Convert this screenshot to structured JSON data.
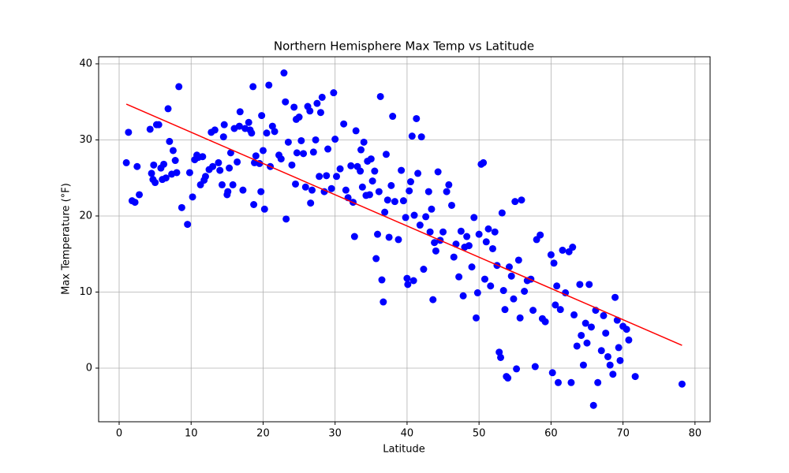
{
  "chart_data": {
    "type": "scatter",
    "title": "Northern Hemisphere Max Temp vs Latitude",
    "x_label": "Latitude",
    "y_label": "Max Temperature (°F)",
    "xlim": [
      -2.85,
      82.1
    ],
    "ylim": [
      -7.05,
      40.93
    ],
    "xticks": [
      0,
      10,
      20,
      30,
      40,
      50,
      60,
      70,
      80
    ],
    "yticks": [
      0,
      10,
      20,
      30,
      40
    ],
    "grid": true,
    "series": [
      {
        "color": "#0000ff",
        "x": [
          1,
          1.3,
          1.8,
          2.2,
          2.5,
          2.8,
          4.3,
          4.5,
          4.7,
          4.8,
          5,
          5.2,
          5.5,
          5.8,
          6,
          6.2,
          6.5,
          6.8,
          7,
          7.3,
          7.5,
          7.8,
          8,
          8.3,
          8.7,
          9.5,
          9.8,
          10.2,
          10.5,
          10.8,
          11,
          11.3,
          11.6,
          11.8,
          12,
          12.5,
          12.8,
          13,
          13.3,
          13.8,
          14,
          14.3,
          14.5,
          14.6,
          15,
          15.1,
          15.3,
          15.5,
          15.8,
          16,
          16.4,
          16.7,
          16.8,
          17.2,
          17.5,
          18,
          18.2,
          18.4,
          18.6,
          18.7,
          18.8,
          19,
          19.5,
          19.7,
          19.8,
          20,
          20.2,
          20.5,
          20.8,
          21,
          21.3,
          21.6,
          22.2,
          22.5,
          22.9,
          23.1,
          23.2,
          23.5,
          24,
          24.3,
          24.5,
          24.6,
          24.7,
          25,
          25.3,
          25.6,
          25.9,
          26.2,
          26.5,
          26.6,
          26.8,
          27,
          27.3,
          27.5,
          27.8,
          28,
          28.2,
          28.5,
          28.8,
          29,
          29.5,
          29.8,
          30,
          30.2,
          30.7,
          31.2,
          31.5,
          31.8,
          32.2,
          32.5,
          32.7,
          32.9,
          33.1,
          33.5,
          33.6,
          33.8,
          34,
          34.3,
          34.5,
          34.8,
          35,
          35.2,
          35.5,
          35.7,
          35.9,
          36.1,
          36.3,
          36.5,
          36.7,
          36.9,
          37.1,
          37.3,
          37.5,
          37.8,
          38,
          38.3,
          38.8,
          39.2,
          39.5,
          39.8,
          40,
          40.1,
          40.3,
          40.5,
          40.7,
          40.9,
          41,
          41.3,
          41.5,
          41.8,
          42,
          42.3,
          42.6,
          43,
          43.2,
          43.4,
          43.6,
          43.8,
          44,
          44.3,
          44.6,
          45,
          45.5,
          45.8,
          46.2,
          46.5,
          46.8,
          47.2,
          47.5,
          47.8,
          48,
          48.3,
          48.6,
          49,
          49.3,
          49.6,
          49.8,
          50,
          50.3,
          50.6,
          50.8,
          51,
          51.3,
          51.6,
          51.9,
          52.2,
          52.5,
          52.8,
          53,
          53.2,
          53.4,
          53.6,
          53.8,
          54,
          54.2,
          54.5,
          54.8,
          55,
          55.2,
          55.5,
          55.7,
          55.9,
          56.3,
          56.7,
          57.2,
          57.5,
          57.8,
          58,
          58.5,
          58.8,
          59.2,
          60,
          60.2,
          60.4,
          60.6,
          60.8,
          61,
          61.3,
          61.6,
          62,
          62.5,
          62.8,
          63,
          63.2,
          63.6,
          64,
          64.2,
          64.5,
          64.8,
          65,
          65.3,
          65.6,
          65.9,
          66.2,
          66.5,
          67,
          67.3,
          67.6,
          67.9,
          68.2,
          68.6,
          68.9,
          69.2,
          69.4,
          69.6,
          70,
          70.5,
          70.8,
          71.7,
          78.2
        ],
        "values": [
          27,
          31,
          22,
          21.8,
          26.5,
          22.8,
          31.4,
          25.6,
          24.8,
          26.7,
          24.4,
          32,
          32,
          26.3,
          24.8,
          26.8,
          25,
          34.1,
          29.8,
          25.5,
          28.6,
          27.3,
          25.7,
          37,
          21.1,
          18.9,
          25.7,
          22.5,
          27.4,
          28,
          27.7,
          24.1,
          27.8,
          24.7,
          25.2,
          26.1,
          31,
          26.5,
          31.3,
          27,
          26,
          24.1,
          30.4,
          32,
          22.8,
          23.2,
          26.3,
          28.3,
          24.1,
          31.5,
          27.1,
          31.8,
          33.7,
          23.4,
          31.5,
          32.3,
          31.3,
          30.9,
          37,
          21.5,
          27,
          27.9,
          26.9,
          23.2,
          33.2,
          28.6,
          20.9,
          30.9,
          37.2,
          26.5,
          31.8,
          31.1,
          28,
          27.5,
          38.8,
          35,
          19.6,
          29.7,
          26.7,
          34.3,
          24.2,
          32.7,
          28.3,
          33,
          29.9,
          28.2,
          23.8,
          34.4,
          33.8,
          21.7,
          23.4,
          28.4,
          30,
          34.8,
          25.2,
          33.6,
          35.6,
          23.2,
          25.3,
          28.8,
          23.6,
          36.2,
          30.1,
          25.2,
          26.2,
          32.1,
          23.4,
          22.4,
          26.6,
          21.8,
          17.3,
          31.2,
          26.5,
          25.9,
          28.7,
          23.8,
          29.7,
          22.7,
          27.2,
          22.8,
          27.5,
          24.6,
          25.9,
          14.4,
          17.6,
          23.2,
          35.7,
          11.6,
          8.7,
          20.5,
          28.1,
          22.1,
          17.2,
          24,
          33.1,
          21.9,
          16.9,
          26,
          22,
          19.8,
          11.8,
          11,
          23.3,
          24.5,
          30.5,
          11.5,
          20.1,
          32.8,
          25.6,
          18.8,
          30.4,
          13,
          19.9,
          23.2,
          17.9,
          20.9,
          9,
          16.5,
          15.4,
          25.8,
          16.8,
          17.9,
          23.2,
          24.1,
          21.4,
          14.6,
          16.3,
          12,
          18,
          9.5,
          15.9,
          17.3,
          16.1,
          13.3,
          19.8,
          6.6,
          9.9,
          17.6,
          26.8,
          27,
          11.7,
          16.6,
          18.3,
          10.8,
          15.7,
          17.9,
          13.5,
          2.1,
          1.4,
          20.4,
          10.2,
          7.7,
          -1.1,
          -1.3,
          13.3,
          12.1,
          9.1,
          21.9,
          -0.1,
          14.2,
          6.6,
          22.1,
          10.1,
          11.5,
          11.7,
          7.6,
          0.2,
          16.9,
          17.5,
          6.5,
          6.1,
          14.9,
          -0.6,
          13.8,
          8.3,
          10.8,
          -1.9,
          7.7,
          15.5,
          9.9,
          15.3,
          -1.9,
          15.9,
          7,
          2.9,
          11,
          4.3,
          0.4,
          5.9,
          3.3,
          11,
          5.4,
          -4.9,
          7.6,
          -1.9,
          2.3,
          6.9,
          4.6,
          1.5,
          0.4,
          -0.8,
          9.3,
          6.3,
          2.7,
          1,
          5.5,
          5.1,
          3.7,
          -1.1,
          -2.1
        ]
      }
    ],
    "trendline": {
      "color": "#ff0000",
      "x": [
        1,
        78.2
      ],
      "values": [
        34.7,
        3.0
      ]
    }
  }
}
